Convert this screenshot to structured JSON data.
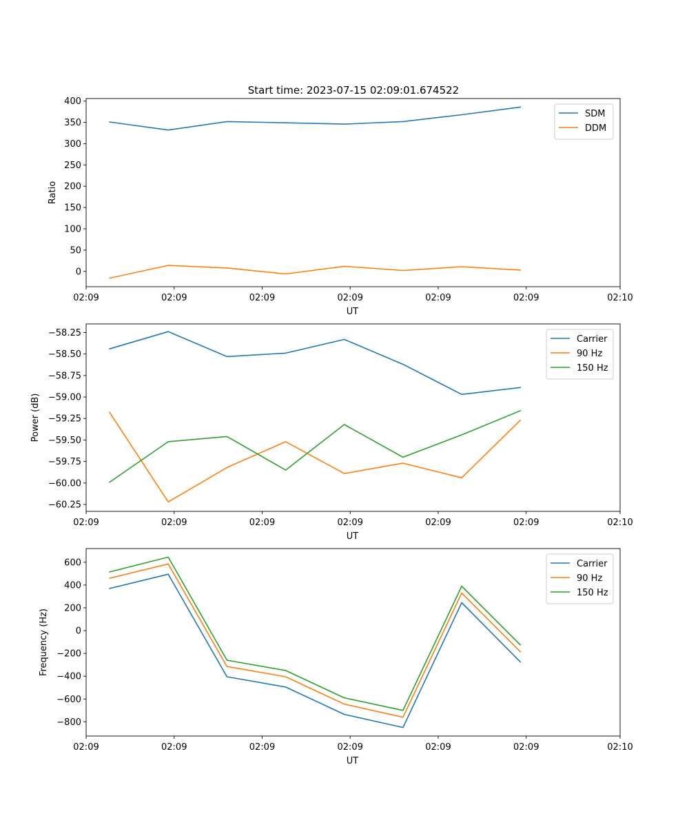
{
  "figure": {
    "title": "Start time: 2023-07-15 02:09:01.674522"
  },
  "chart_data": [
    {
      "type": "line",
      "xlabel": "UT",
      "ylabel": "Ratio",
      "xlim": [
        -0.4,
        8.7
      ],
      "xtick_positions": [
        -0.4,
        1.1,
        2.6,
        4.1,
        5.6,
        7.1,
        8.7
      ],
      "xtick_labels": [
        "02:09",
        "02:09",
        "02:09",
        "02:09",
        "02:09",
        "02:09",
        "02:10"
      ],
      "ylim": [
        -36,
        406
      ],
      "yticks": [
        0,
        50,
        100,
        150,
        200,
        250,
        300,
        350,
        400
      ],
      "ytick_labels": [
        "0",
        "50",
        "100",
        "150",
        "200",
        "250",
        "300",
        "350",
        "400"
      ],
      "legend_position": "top-right",
      "x": [
        0,
        1,
        2,
        3,
        4,
        5,
        6,
        7
      ],
      "series": [
        {
          "name": "SDM",
          "color": "#1f77b4",
          "values": [
            351,
            332,
            352,
            349,
            346,
            352,
            368,
            386
          ]
        },
        {
          "name": "DDM",
          "color": "#ff7f0e",
          "values": [
            -16,
            14,
            8,
            -6,
            12,
            2,
            11,
            3
          ]
        }
      ]
    },
    {
      "type": "line",
      "xlabel": "UT",
      "ylabel": "Power (dB)",
      "xlim": [
        -0.4,
        8.7
      ],
      "xtick_positions": [
        -0.4,
        1.1,
        2.6,
        4.1,
        5.6,
        7.1,
        8.7
      ],
      "xtick_labels": [
        "02:09",
        "02:09",
        "02:09",
        "02:09",
        "02:09",
        "02:09",
        "02:10"
      ],
      "ylim": [
        -60.33,
        -58.15
      ],
      "yticks": [
        -60.25,
        -60.0,
        -59.75,
        -59.5,
        -59.25,
        -59.0,
        -58.75,
        -58.5,
        -58.25
      ],
      "ytick_labels": [
        "−60.25",
        "−60.00",
        "−59.75",
        "−59.50",
        "−59.25",
        "−59.00",
        "−58.75",
        "−58.50",
        "−58.25"
      ],
      "legend_position": "top-right",
      "x": [
        0,
        1,
        2,
        3,
        4,
        5,
        6,
        7
      ],
      "series": [
        {
          "name": "Carrier",
          "color": "#1f77b4",
          "values": [
            -58.44,
            -58.24,
            -58.53,
            -58.49,
            -58.33,
            -58.62,
            -58.97,
            -58.89
          ]
        },
        {
          "name": "90 Hz",
          "color": "#ff7f0e",
          "values": [
            -59.18,
            -60.22,
            -59.82,
            -59.52,
            -59.89,
            -59.77,
            -59.94,
            -59.27
          ]
        },
        {
          "name": "150 Hz",
          "color": "#2ca02c",
          "values": [
            -59.99,
            -59.52,
            -59.46,
            -59.85,
            -59.32,
            -59.7,
            -59.44,
            -59.16
          ]
        }
      ]
    },
    {
      "type": "line",
      "xlabel": "UT",
      "ylabel": "Frequency (Hz)",
      "xlim": [
        -0.4,
        8.7
      ],
      "xtick_positions": [
        -0.4,
        1.1,
        2.6,
        4.1,
        5.6,
        7.1,
        8.7
      ],
      "xtick_labels": [
        "02:09",
        "02:09",
        "02:09",
        "02:09",
        "02:09",
        "02:09",
        "02:10"
      ],
      "ylim": [
        -925,
        720
      ],
      "yticks": [
        -800,
        -600,
        -400,
        -200,
        0,
        200,
        400,
        600
      ],
      "ytick_labels": [
        "−800",
        "−600",
        "−400",
        "−200",
        "0",
        "200",
        "400",
        "600"
      ],
      "legend_position": "top-right",
      "x": [
        0,
        1,
        2,
        3,
        4,
        5,
        6,
        7
      ],
      "series": [
        {
          "name": "Carrier",
          "color": "#1f77b4",
          "values": [
            370,
            495,
            -405,
            -495,
            -735,
            -850,
            245,
            -275
          ]
        },
        {
          "name": "90 Hz",
          "color": "#ff7f0e",
          "values": [
            460,
            585,
            -315,
            -405,
            -645,
            -760,
            330,
            -185
          ]
        },
        {
          "name": "150 Hz",
          "color": "#2ca02c",
          "values": [
            515,
            645,
            -260,
            -350,
            -590,
            -700,
            390,
            -125
          ]
        }
      ]
    }
  ]
}
